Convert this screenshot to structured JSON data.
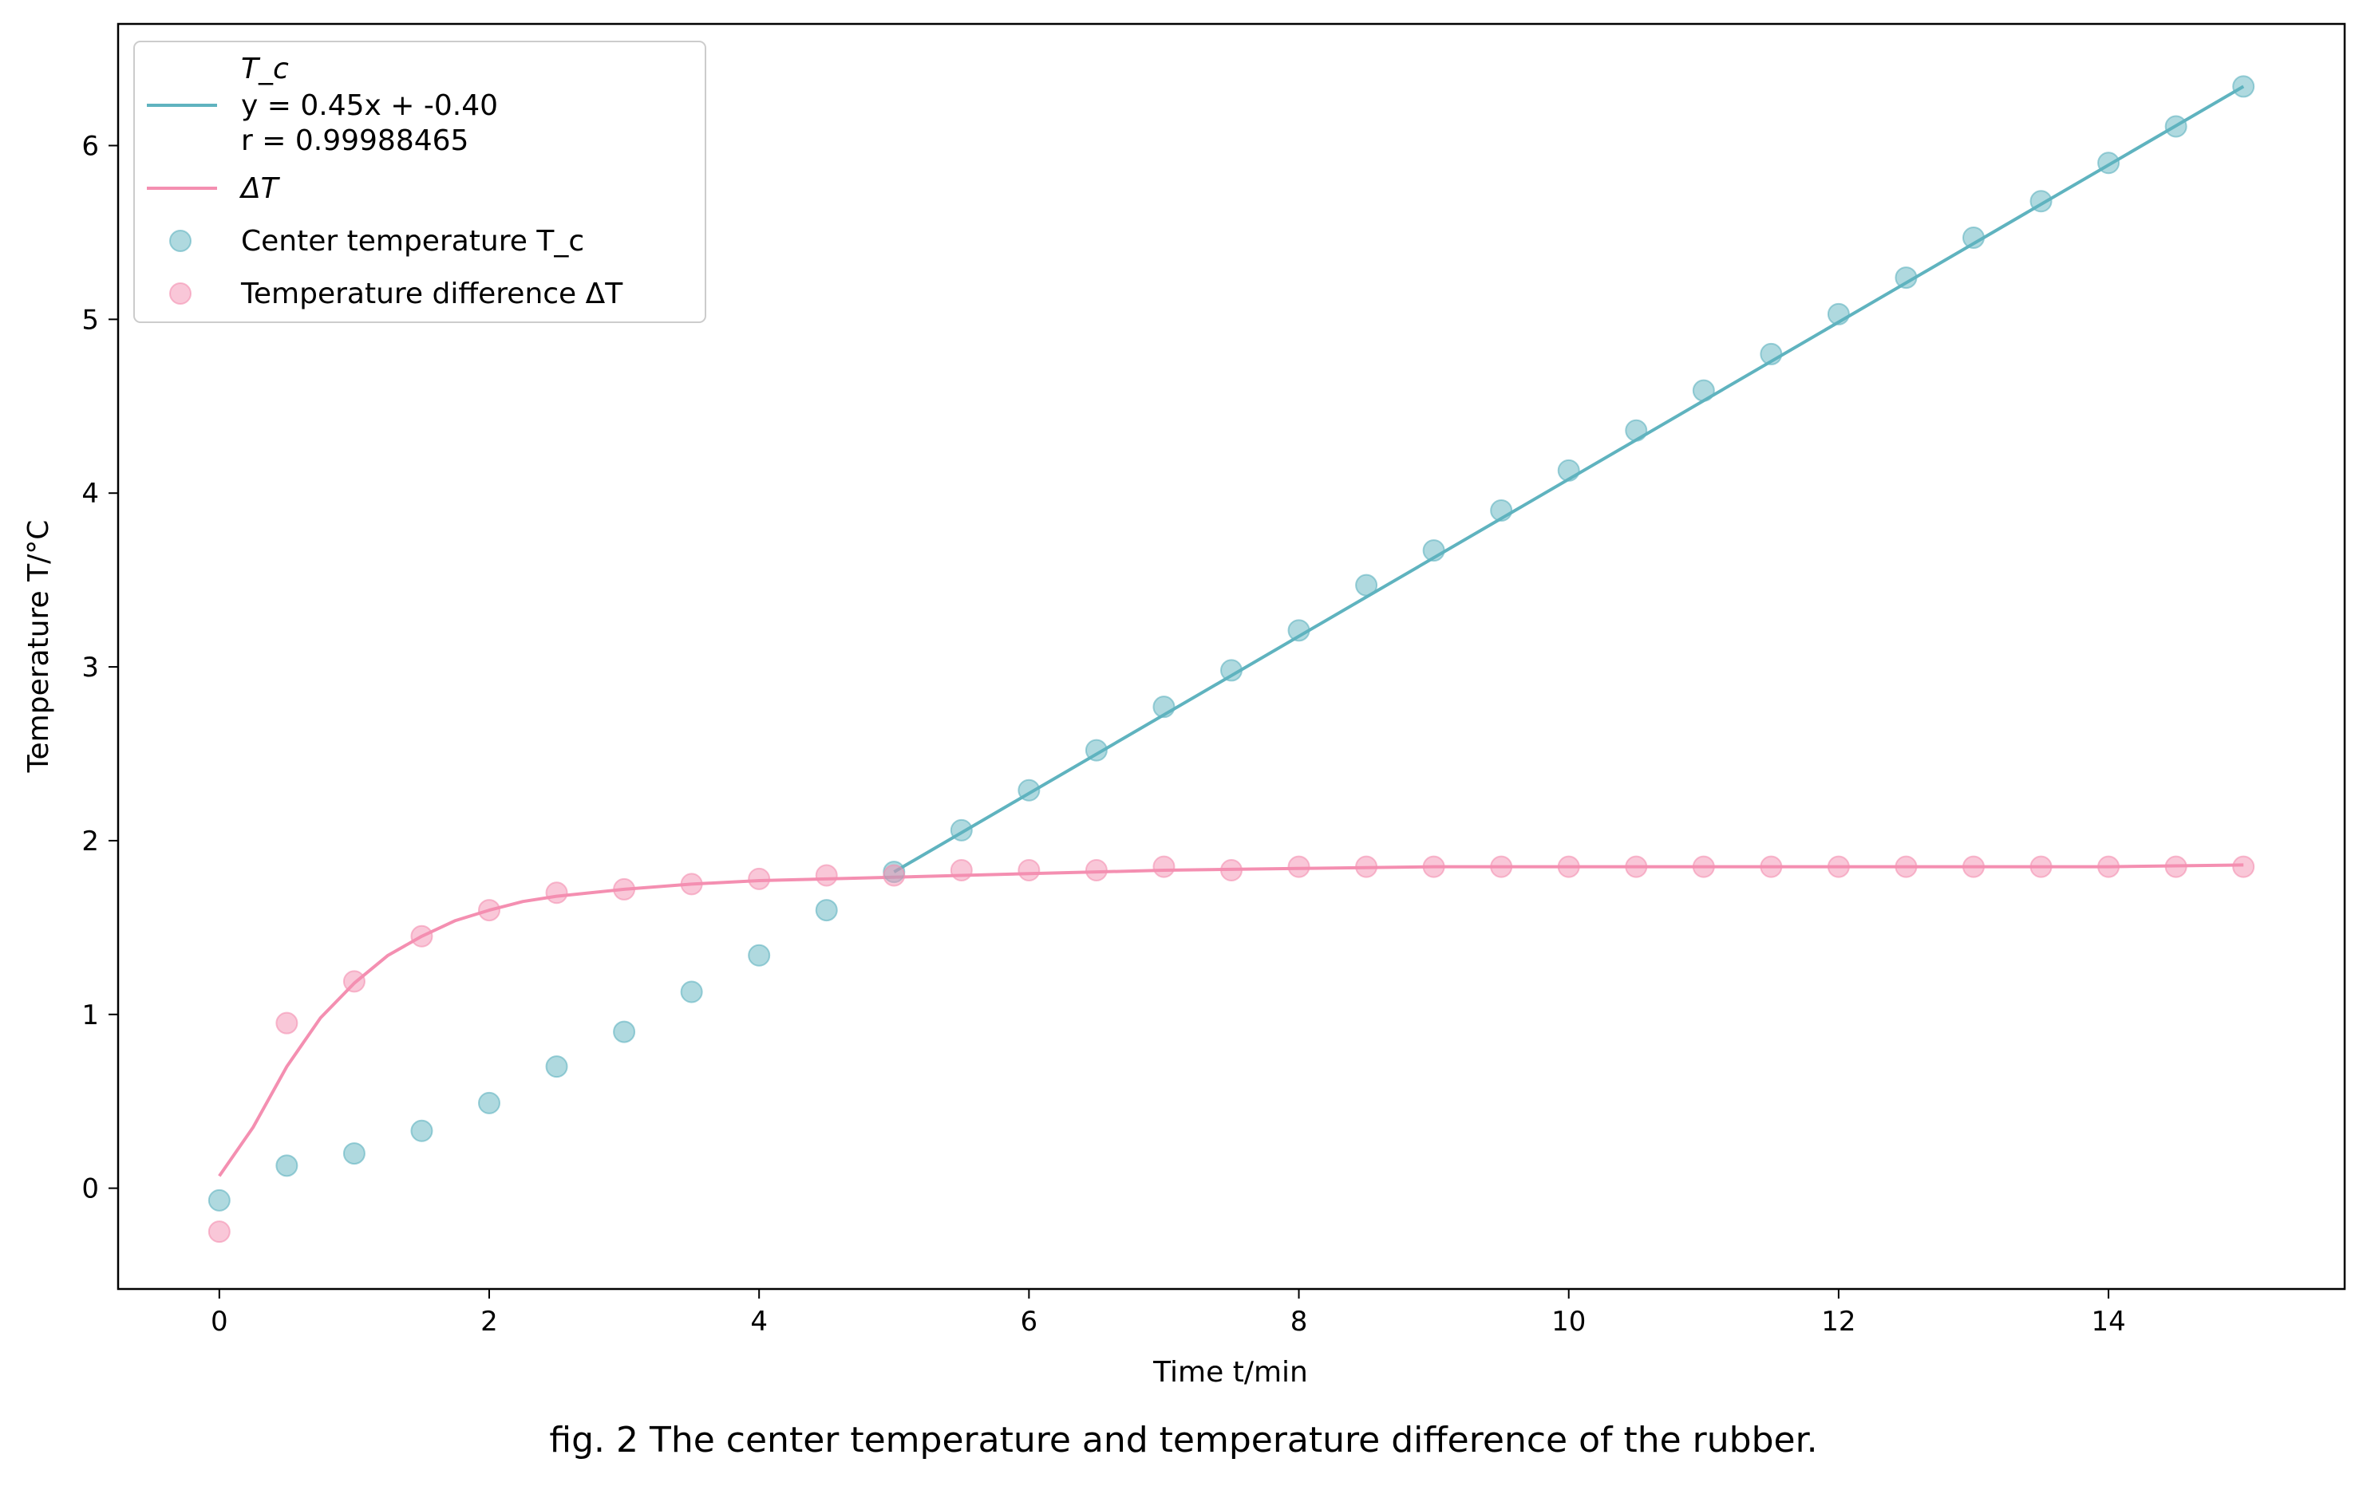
{
  "caption": "fig. 2 The center temperature and temperature difference of the rubber.",
  "chart_data": {
    "type": "scatter",
    "xlabel": "Time t/min",
    "ylabel": "Temperature T/°C",
    "xlim": [
      -0.75,
      15.75
    ],
    "ylim": [
      -0.58,
      6.7
    ],
    "xticks": [
      0,
      2,
      4,
      6,
      8,
      10,
      12,
      14
    ],
    "yticks": [
      0,
      1,
      2,
      3,
      4,
      5,
      6
    ],
    "grid": false,
    "legend_position": "top-left",
    "colors": {
      "tc": "#5fb3bf",
      "dt": "#f48fb1"
    },
    "legend": {
      "tc_fit_title": "T_c",
      "tc_fit_equation": "y = 0.45x + -0.40",
      "tc_fit_r": "r = 0.99988465",
      "dt_fit": "ΔT",
      "tc_points": "Center temperature T_c",
      "dt_points": "Temperature difference ΔT"
    },
    "series": [
      {
        "name": "Center temperature T_c",
        "kind": "scatter",
        "x": [
          0,
          0.5,
          1,
          1.5,
          2,
          2.5,
          3,
          3.5,
          4,
          4.5,
          5,
          5.5,
          6,
          6.5,
          7,
          7.5,
          8,
          8.5,
          9,
          9.5,
          10,
          10.5,
          11,
          11.5,
          12,
          12.5,
          13,
          13.5,
          14,
          14.5,
          15
        ],
        "y": [
          -0.07,
          0.13,
          0.2,
          0.33,
          0.49,
          0.7,
          0.9,
          1.13,
          1.34,
          1.6,
          1.82,
          2.06,
          2.29,
          2.52,
          2.77,
          2.98,
          3.21,
          3.47,
          3.67,
          3.9,
          4.13,
          4.36,
          4.59,
          4.8,
          5.03,
          5.24,
          5.47,
          5.68,
          5.9,
          6.11,
          6.34
        ]
      },
      {
        "name": "Temperature difference ΔT",
        "kind": "scatter",
        "x": [
          0,
          0.5,
          1,
          1.5,
          2,
          2.5,
          3,
          3.5,
          4,
          4.5,
          5,
          5.5,
          6,
          6.5,
          7,
          7.5,
          8,
          8.5,
          9,
          9.5,
          10,
          10.5,
          11,
          11.5,
          12,
          12.5,
          13,
          13.5,
          14,
          14.5,
          15
        ],
        "y": [
          -0.25,
          0.95,
          1.19,
          1.45,
          1.6,
          1.7,
          1.72,
          1.75,
          1.78,
          1.8,
          1.8,
          1.83,
          1.83,
          1.83,
          1.85,
          1.83,
          1.85,
          1.85,
          1.85,
          1.85,
          1.85,
          1.85,
          1.85,
          1.85,
          1.85,
          1.85,
          1.85,
          1.85,
          1.85,
          1.85,
          1.85
        ]
      },
      {
        "name": "T_c fit",
        "kind": "line",
        "x": [
          5,
          15
        ],
        "y": [
          1.82,
          6.34
        ]
      },
      {
        "name": "ΔT",
        "kind": "line",
        "x": [
          0,
          0.25,
          0.5,
          0.75,
          1,
          1.25,
          1.5,
          1.75,
          2,
          2.25,
          2.5,
          3,
          3.5,
          4,
          4.5,
          5,
          6,
          7,
          8,
          9,
          10,
          11,
          12,
          13,
          14,
          15
        ],
        "y": [
          0.07,
          0.35,
          0.7,
          0.98,
          1.18,
          1.34,
          1.45,
          1.54,
          1.6,
          1.65,
          1.68,
          1.72,
          1.75,
          1.77,
          1.78,
          1.79,
          1.81,
          1.83,
          1.84,
          1.85,
          1.85,
          1.85,
          1.85,
          1.85,
          1.85,
          1.86
        ]
      }
    ]
  }
}
